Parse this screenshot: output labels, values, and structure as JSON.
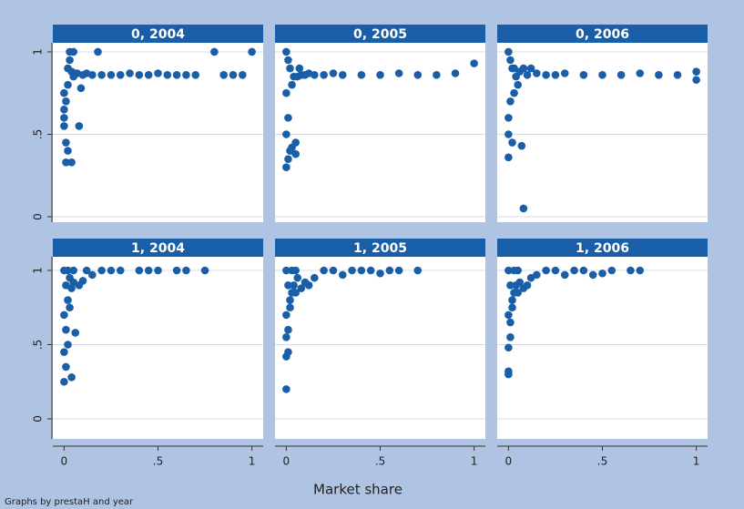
{
  "xlabel": "Market share",
  "note": "Graphs by prestaH and year",
  "chart_data": [
    {
      "type": "scatter",
      "title": "0, 2004",
      "color": "#1a5ea8",
      "grid": true,
      "xlim": [
        -0.06,
        1.06
      ],
      "ylim": [
        -0.033,
        1.055
      ],
      "yticks": [
        0,
        {
          "value": 0.5,
          "label": ".5"
        },
        1
      ],
      "x": [
        0,
        0,
        0,
        0.01,
        0.01,
        0.02,
        0.02,
        0.03,
        0.03,
        0.04,
        0.05,
        0.05,
        0.06,
        0.07,
        0.08,
        0.1,
        0.12,
        0.15,
        0.18,
        0.2,
        0.25,
        0.3,
        0.35,
        0.4,
        0.45,
        0.5,
        0.55,
        0.6,
        0.65,
        0.7,
        0.8,
        0.85,
        0.9,
        0.95,
        1.0,
        0.02,
        0.01,
        0.04,
        0.09,
        0.0
      ],
      "values": [
        0.55,
        0.65,
        0.75,
        0.33,
        0.45,
        0.4,
        0.9,
        0.95,
        1.0,
        0.33,
        0.85,
        1.0,
        0.87,
        0.87,
        0.55,
        0.86,
        0.87,
        0.86,
        1.0,
        0.86,
        0.86,
        0.86,
        0.87,
        0.86,
        0.86,
        0.87,
        0.86,
        0.86,
        0.86,
        0.86,
        1.0,
        0.86,
        0.86,
        0.86,
        1.0,
        0.8,
        0.7,
        0.88,
        0.78,
        0.6
      ]
    },
    {
      "type": "scatter",
      "title": "0, 2005",
      "color": "#1a5ea8",
      "grid": true,
      "xlim": [
        -0.06,
        1.06
      ],
      "ylim": [
        -0.033,
        1.055
      ],
      "yticks": [
        0,
        {
          "value": 0.5,
          "label": ".5"
        },
        1
      ],
      "x": [
        0,
        0,
        0,
        0.01,
        0.01,
        0.02,
        0.02,
        0.03,
        0.04,
        0.05,
        0.06,
        0.08,
        0.1,
        0.12,
        0.15,
        0.2,
        0.25,
        0.3,
        0.4,
        0.5,
        0.6,
        0.7,
        0.8,
        0.9,
        1.0,
        0.05,
        0.07,
        0.03,
        0.01,
        0.0
      ],
      "values": [
        0.3,
        0.5,
        1.0,
        0.6,
        0.95,
        0.4,
        0.9,
        0.42,
        0.85,
        0.38,
        0.85,
        0.86,
        0.86,
        0.87,
        0.86,
        0.86,
        0.87,
        0.86,
        0.86,
        0.86,
        0.87,
        0.86,
        0.86,
        0.87,
        0.93,
        0.45,
        0.9,
        0.8,
        0.35,
        0.75
      ]
    },
    {
      "type": "scatter",
      "title": "0, 2006",
      "color": "#1a5ea8",
      "grid": true,
      "xlim": [
        -0.06,
        1.06
      ],
      "ylim": [
        -0.033,
        1.055
      ],
      "yticks": [
        0,
        {
          "value": 0.5,
          "label": ".5"
        },
        1
      ],
      "x": [
        0,
        0,
        0,
        0.01,
        0.01,
        0.02,
        0.02,
        0.03,
        0.04,
        0.05,
        0.06,
        0.07,
        0.08,
        0.1,
        0.12,
        0.15,
        0.2,
        0.25,
        0.3,
        0.4,
        0.5,
        0.6,
        0.7,
        0.8,
        0.9,
        1.0,
        1.0,
        0.08,
        0.03,
        0.0
      ],
      "values": [
        0.36,
        0.5,
        1.0,
        0.7,
        0.95,
        0.45,
        0.9,
        0.9,
        0.85,
        0.8,
        0.88,
        0.43,
        0.05,
        0.86,
        0.9,
        0.87,
        0.86,
        0.86,
        0.87,
        0.86,
        0.86,
        0.86,
        0.87,
        0.86,
        0.86,
        0.88,
        0.83,
        0.9,
        0.75,
        0.6
      ]
    },
    {
      "type": "scatter",
      "title": "1, 2004",
      "color": "#1a5ea8",
      "grid": true,
      "xlim": [
        -0.06,
        1.06
      ],
      "ylim": [
        -0.135,
        1.092
      ],
      "yticks": [
        0,
        {
          "value": 0.5,
          "label": ".5"
        },
        1
      ],
      "xticks": [
        0,
        {
          "value": 0.5,
          "label": ".5"
        },
        1
      ],
      "x": [
        0,
        0,
        0,
        0,
        0.01,
        0.01,
        0.02,
        0.02,
        0.03,
        0.04,
        0.05,
        0.06,
        0.08,
        0.1,
        0.12,
        0.15,
        0.2,
        0.25,
        0.3,
        0.4,
        0.45,
        0.5,
        0.6,
        0.65,
        0.75,
        0.02,
        0.03,
        0.01,
        0.04,
        0.05
      ],
      "values": [
        0.25,
        0.45,
        0.7,
        1.0,
        0.35,
        0.9,
        0.5,
        1.0,
        0.95,
        0.28,
        0.92,
        0.58,
        0.9,
        0.93,
        1.0,
        0.97,
        1.0,
        1.0,
        1.0,
        1.0,
        1.0,
        1.0,
        1.0,
        1.0,
        1.0,
        0.8,
        0.75,
        0.6,
        0.88,
        1.0
      ]
    },
    {
      "type": "scatter",
      "title": "1, 2005",
      "color": "#1a5ea8",
      "grid": true,
      "xlim": [
        -0.06,
        1.06
      ],
      "ylim": [
        -0.135,
        1.092
      ],
      "yticks": [
        0,
        {
          "value": 0.5,
          "label": ".5"
        },
        1
      ],
      "xticks": [
        0,
        {
          "value": 0.5,
          "label": ".5"
        },
        1
      ],
      "x": [
        0,
        0,
        0,
        0,
        0.01,
        0.01,
        0.02,
        0.03,
        0.04,
        0.05,
        0.06,
        0.08,
        0.1,
        0.12,
        0.15,
        0.2,
        0.25,
        0.3,
        0.35,
        0.4,
        0.45,
        0.5,
        0.55,
        0.6,
        0.7,
        0.01,
        0.02,
        0.03,
        0.0,
        0.05
      ],
      "values": [
        0.2,
        0.42,
        0.7,
        1.0,
        0.45,
        0.9,
        0.8,
        1.0,
        0.9,
        0.85,
        0.95,
        0.88,
        0.92,
        0.9,
        0.95,
        1.0,
        1.0,
        0.97,
        1.0,
        1.0,
        1.0,
        0.98,
        1.0,
        1.0,
        1.0,
        0.6,
        0.75,
        0.85,
        0.55,
        1.0
      ]
    },
    {
      "type": "scatter",
      "title": "1, 2006",
      "color": "#1a5ea8",
      "grid": true,
      "xlim": [
        -0.06,
        1.06
      ],
      "ylim": [
        -0.135,
        1.092
      ],
      "yticks": [
        0,
        {
          "value": 0.5,
          "label": ".5"
        },
        1
      ],
      "xticks": [
        0,
        {
          "value": 0.5,
          "label": ".5"
        },
        1
      ],
      "x": [
        0,
        0,
        0,
        0,
        0.01,
        0.01,
        0.02,
        0.03,
        0.04,
        0.05,
        0.06,
        0.08,
        0.1,
        0.12,
        0.15,
        0.2,
        0.25,
        0.3,
        0.35,
        0.4,
        0.45,
        0.5,
        0.55,
        0.65,
        0.7,
        0.01,
        0.02,
        0.03,
        0.0,
        0.05
      ],
      "values": [
        0.3,
        0.48,
        0.7,
        1.0,
        0.55,
        0.9,
        0.8,
        1.0,
        0.9,
        0.85,
        0.92,
        0.88,
        0.9,
        0.95,
        0.97,
        1.0,
        1.0,
        0.97,
        1.0,
        1.0,
        0.97,
        0.98,
        1.0,
        1.0,
        1.0,
        0.65,
        0.75,
        0.85,
        0.32,
        1.0
      ]
    }
  ]
}
